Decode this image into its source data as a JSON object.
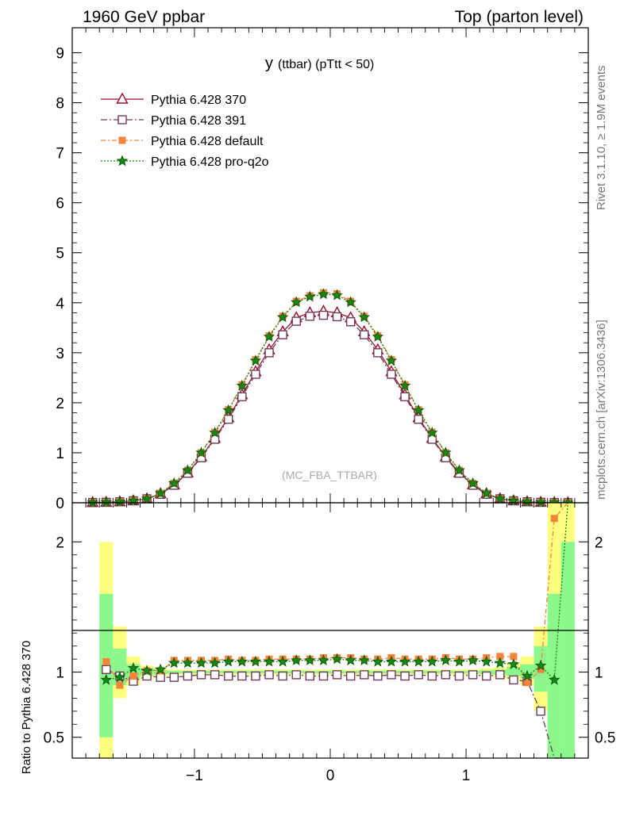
{
  "header": {
    "left": "1960 GeV ppbar",
    "right": "Top (parton level)"
  },
  "side_labels": {
    "rivet": "Rivet 3.1.10, ≥ 1.9M events",
    "mcplots": "mcplots.cern.ch [arXiv:1306.3436]"
  },
  "plot_title": {
    "main": "y",
    "sub": "(ttbar)  (pTtt < 50)"
  },
  "watermark": "(MC_FBA_TTBAR)",
  "ratio_ylabel": "Ratio to Pythia 6.428 370",
  "colors": {
    "p370": "#9a0e2a",
    "p391": "#6e3b5c",
    "default": "#f5843a",
    "proq2o": "#118a11",
    "band_yellow": "#ffff7f",
    "band_green": "#8cf78c"
  },
  "chart_data": [
    {
      "type": "line",
      "title": "",
      "xlim": [
        -1.9,
        1.9
      ],
      "ylim": [
        0,
        9.5
      ],
      "yticks": [
        0,
        1,
        2,
        3,
        4,
        5,
        6,
        7,
        8,
        9
      ],
      "x": [
        -1.75,
        -1.65,
        -1.55,
        -1.45,
        -1.35,
        -1.25,
        -1.15,
        -1.05,
        -0.95,
        -0.85,
        -0.75,
        -0.65,
        -0.55,
        -0.45,
        -0.35,
        -0.25,
        -0.15,
        -0.05,
        0.05,
        0.15,
        0.25,
        0.35,
        0.45,
        0.55,
        0.65,
        0.75,
        0.85,
        0.95,
        1.05,
        1.15,
        1.25,
        1.35,
        1.45,
        1.55,
        1.65,
        1.75
      ],
      "series": [
        {
          "name": "Pythia 6.428 370",
          "key": "p370",
          "marker": "triangle",
          "dash": "",
          "values": [
            0.005,
            0.01,
            0.02,
            0.04,
            0.08,
            0.18,
            0.36,
            0.6,
            0.92,
            1.29,
            1.7,
            2.16,
            2.62,
            3.06,
            3.42,
            3.7,
            3.8,
            3.83,
            3.8,
            3.7,
            3.42,
            3.06,
            2.62,
            2.16,
            1.7,
            1.29,
            0.92,
            0.6,
            0.36,
            0.18,
            0.08,
            0.04,
            0.02,
            0.01,
            0.005,
            0.002
          ]
        },
        {
          "name": "Pythia 6.428 391",
          "key": "p391",
          "marker": "square",
          "dash": "8,3,2,3",
          "values": [
            0.005,
            0.01,
            0.02,
            0.04,
            0.08,
            0.17,
            0.35,
            0.59,
            0.9,
            1.27,
            1.67,
            2.12,
            2.57,
            3.0,
            3.36,
            3.63,
            3.73,
            3.75,
            3.72,
            3.62,
            3.36,
            3.0,
            2.57,
            2.12,
            1.67,
            1.27,
            0.9,
            0.59,
            0.35,
            0.17,
            0.08,
            0.04,
            0.02,
            0.01,
            0.004,
            0.002
          ]
        },
        {
          "name": "Pythia 6.428 default",
          "key": "default",
          "marker": "fsquare",
          "dash": "6,3,2,3",
          "values": [
            0.005,
            0.01,
            0.02,
            0.04,
            0.08,
            0.19,
            0.39,
            0.65,
            1.0,
            1.41,
            1.86,
            2.36,
            2.86,
            3.34,
            3.73,
            4.03,
            4.14,
            4.2,
            4.18,
            4.03,
            3.73,
            3.34,
            2.86,
            2.36,
            1.86,
            1.41,
            1.0,
            0.65,
            0.39,
            0.19,
            0.08,
            0.04,
            0.02,
            0.01,
            0.005,
            0.002
          ]
        },
        {
          "name": "Pythia 6.428 pro-q2o",
          "key": "proq2o",
          "marker": "star",
          "dash": "2,2",
          "values": [
            0.005,
            0.01,
            0.02,
            0.04,
            0.08,
            0.19,
            0.39,
            0.65,
            1.0,
            1.4,
            1.85,
            2.34,
            2.84,
            3.32,
            3.71,
            4.01,
            4.12,
            4.17,
            4.15,
            4.01,
            3.71,
            3.32,
            2.84,
            2.34,
            1.85,
            1.4,
            1.0,
            0.65,
            0.39,
            0.19,
            0.08,
            0.04,
            0.02,
            0.01,
            0.005,
            0.002
          ]
        }
      ]
    },
    {
      "type": "line",
      "title": "",
      "ylabel": "Ratio to Pythia 6.428 370",
      "xlim": [
        -1.9,
        1.9
      ],
      "ylim": [
        0.34,
        2.3
      ],
      "xticks": [
        -1,
        0,
        1
      ],
      "xtick_labels": [
        "−1",
        "0",
        "1"
      ],
      "yticks": [
        0.5,
        1,
        2
      ],
      "ytick_labels": [
        "0.5",
        "1",
        "2"
      ],
      "x": [
        -1.65,
        -1.55,
        -1.45,
        -1.35,
        -1.25,
        -1.15,
        -1.05,
        -0.95,
        -0.85,
        -0.75,
        -0.65,
        -0.55,
        -0.45,
        -0.35,
        -0.25,
        -0.15,
        -0.05,
        0.05,
        0.15,
        0.25,
        0.35,
        0.45,
        0.55,
        0.65,
        0.75,
        0.85,
        0.95,
        1.05,
        1.15,
        1.25,
        1.35,
        1.45,
        1.55,
        1.65,
        1.75
      ],
      "bands": {
        "yellow": [
          [
            0.3,
            2.0
          ],
          [
            0.8,
            1.35
          ],
          [
            0.9,
            1.12
          ],
          [
            0.95,
            1.05
          ],
          [
            0.97,
            1.03
          ],
          [
            0.98,
            1.02
          ],
          [
            0.98,
            1.02
          ],
          [
            0.98,
            1.02
          ],
          [
            0.98,
            1.02
          ],
          [
            0.98,
            1.02
          ],
          [
            0.98,
            1.02
          ],
          [
            0.98,
            1.02
          ],
          [
            0.98,
            1.02
          ],
          [
            0.98,
            1.02
          ],
          [
            0.98,
            1.02
          ],
          [
            0.98,
            1.02
          ],
          [
            0.98,
            1.02
          ],
          [
            0.98,
            1.02
          ],
          [
            0.98,
            1.02
          ],
          [
            0.98,
            1.02
          ],
          [
            0.98,
            1.02
          ],
          [
            0.98,
            1.02
          ],
          [
            0.98,
            1.02
          ],
          [
            0.98,
            1.02
          ],
          [
            0.98,
            1.02
          ],
          [
            0.98,
            1.02
          ],
          [
            0.98,
            1.02
          ],
          [
            0.98,
            1.02
          ],
          [
            0.97,
            1.03
          ],
          [
            0.96,
            1.04
          ],
          [
            0.94,
            1.07
          ],
          [
            0.9,
            1.12
          ],
          [
            0.7,
            1.35
          ],
          [
            0.3,
            2.3
          ],
          [
            0.3,
            2.3
          ]
        ],
        "green": [
          [
            0.5,
            1.6
          ],
          [
            0.9,
            1.18
          ],
          [
            0.95,
            1.06
          ],
          [
            0.97,
            1.03
          ],
          [
            0.985,
            1.015
          ],
          [
            0.99,
            1.01
          ],
          [
            0.99,
            1.01
          ],
          [
            0.99,
            1.01
          ],
          [
            0.99,
            1.01
          ],
          [
            0.99,
            1.01
          ],
          [
            0.99,
            1.01
          ],
          [
            0.99,
            1.01
          ],
          [
            0.99,
            1.01
          ],
          [
            0.99,
            1.01
          ],
          [
            0.99,
            1.01
          ],
          [
            0.99,
            1.01
          ],
          [
            0.99,
            1.01
          ],
          [
            0.99,
            1.01
          ],
          [
            0.99,
            1.01
          ],
          [
            0.99,
            1.01
          ],
          [
            0.99,
            1.01
          ],
          [
            0.99,
            1.01
          ],
          [
            0.99,
            1.01
          ],
          [
            0.99,
            1.01
          ],
          [
            0.99,
            1.01
          ],
          [
            0.99,
            1.01
          ],
          [
            0.99,
            1.01
          ],
          [
            0.99,
            1.01
          ],
          [
            0.985,
            1.015
          ],
          [
            0.98,
            1.02
          ],
          [
            0.97,
            1.04
          ],
          [
            0.95,
            1.06
          ],
          [
            0.85,
            1.2
          ],
          [
            0.3,
            1.6
          ],
          [
            0.3,
            2.0
          ]
        ]
      },
      "series": [
        {
          "name": "Pythia 6.428 391",
          "key": "p391",
          "marker": "square",
          "dash": "8,3,2,3",
          "values": [
            1.02,
            0.97,
            0.93,
            0.97,
            0.96,
            0.96,
            0.97,
            0.98,
            0.98,
            0.97,
            0.97,
            0.97,
            0.98,
            0.97,
            0.98,
            0.97,
            0.97,
            0.98,
            0.97,
            0.98,
            0.97,
            0.98,
            0.97,
            0.98,
            0.97,
            0.98,
            0.97,
            0.98,
            0.97,
            0.98,
            0.94,
            0.93,
            0.7,
            0.25,
            0.25
          ]
        },
        {
          "name": "Pythia 6.428 default",
          "key": "default",
          "marker": "fsquare",
          "dash": "6,3,2,3",
          "values": [
            1.08,
            0.9,
            0.97,
            1.01,
            1.01,
            1.09,
            1.09,
            1.09,
            1.09,
            1.1,
            1.09,
            1.09,
            1.1,
            1.1,
            1.1,
            1.1,
            1.11,
            1.11,
            1.11,
            1.1,
            1.1,
            1.11,
            1.1,
            1.1,
            1.1,
            1.11,
            1.1,
            1.1,
            1.11,
            1.12,
            1.12,
            0.92,
            1.02,
            2.18,
            2.3
          ]
        },
        {
          "name": "Pythia 6.428 pro-q2o",
          "key": "proq2o",
          "marker": "star",
          "dash": "2,2",
          "values": [
            0.94,
            0.96,
            1.03,
            1.01,
            1.02,
            1.07,
            1.07,
            1.07,
            1.07,
            1.08,
            1.08,
            1.08,
            1.08,
            1.08,
            1.09,
            1.09,
            1.09,
            1.1,
            1.09,
            1.09,
            1.08,
            1.08,
            1.08,
            1.08,
            1.08,
            1.09,
            1.08,
            1.09,
            1.08,
            1.07,
            1.06,
            0.97,
            1.05,
            0.94,
            2.3
          ]
        }
      ]
    }
  ]
}
